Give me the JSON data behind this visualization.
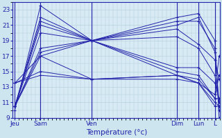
{
  "xlabel": "Température (°c)",
  "bg_color": "#cce5ee",
  "plot_bg_color": "#d8eaf4",
  "line_color": "#2222aa",
  "grid_color": "#b0ccd8",
  "tick_label_color": "#2222aa",
  "axis_label_color": "#2222aa",
  "ylim": [
    9,
    24
  ],
  "yticks": [
    9,
    11,
    13,
    15,
    17,
    19,
    21,
    23
  ],
  "day_labels": [
    "Jeu",
    "Sam",
    "Ven",
    "Dim",
    "Lun",
    "L"
  ],
  "day_x": [
    0.0,
    0.125,
    0.375,
    0.79,
    0.895,
    0.975
  ],
  "series": [
    [
      10.0,
      23.5,
      19.0,
      22.0,
      22.5,
      19.0,
      9.0
    ],
    [
      10.5,
      22.0,
      19.0,
      21.5,
      21.5,
      18.0,
      10.0
    ],
    [
      10.5,
      21.5,
      19.0,
      21.0,
      22.0,
      17.5,
      11.0
    ],
    [
      10.5,
      21.0,
      19.0,
      20.5,
      18.5,
      16.5,
      14.0
    ],
    [
      10.5,
      20.0,
      19.0,
      19.5,
      18.0,
      14.5,
      11.0
    ],
    [
      10.5,
      18.0,
      19.0,
      15.5,
      15.5,
      13.5,
      11.5
    ],
    [
      10.5,
      17.5,
      19.0,
      15.0,
      14.5,
      11.5,
      11.5
    ],
    [
      10.5,
      17.0,
      19.0,
      14.5,
      14.0,
      11.5,
      14.5
    ],
    [
      13.5,
      17.0,
      14.0,
      14.0,
      13.5,
      11.0,
      10.5
    ],
    [
      13.5,
      15.0,
      14.0,
      14.5,
      13.5,
      10.5,
      10.5
    ],
    [
      13.5,
      14.5,
      14.0,
      14.5,
      13.5,
      12.0,
      17.0
    ]
  ],
  "vline_positions": [
    0.0,
    0.125,
    0.375,
    0.79,
    0.895,
    0.975
  ]
}
